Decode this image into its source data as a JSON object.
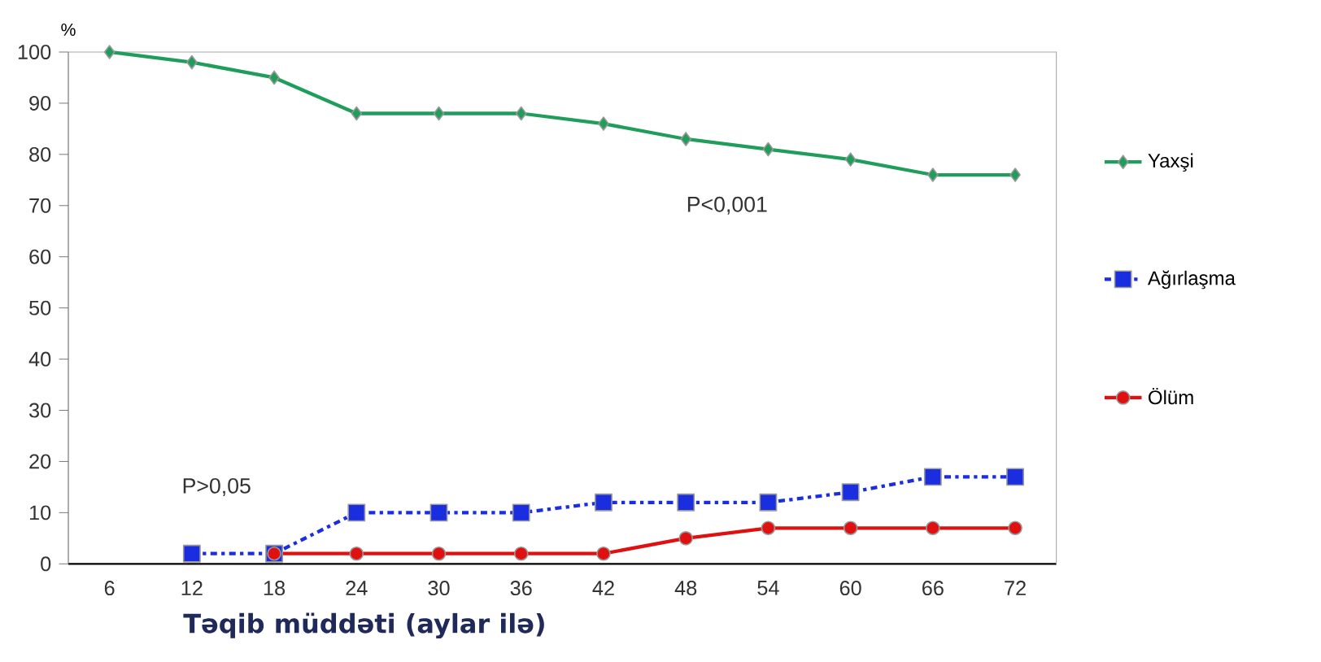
{
  "chart_data": {
    "type": "line",
    "ylabel": "%",
    "xlabel": "Təqib müddəti (aylar ilə)",
    "categories": [
      "6",
      "12",
      "18",
      "24",
      "30",
      "36",
      "42",
      "48",
      "54",
      "60",
      "66",
      "72"
    ],
    "series": [
      {
        "name": "Yaxşi",
        "color": "#1e9e5a",
        "marker": "diamond",
        "line_style": "solid",
        "values": [
          100,
          98,
          95,
          88,
          88,
          88,
          86,
          83,
          81,
          79,
          76,
          76
        ]
      },
      {
        "name": "Ağırlaşma",
        "color": "#1a2ee0",
        "marker": "square",
        "line_style": "dashed",
        "values": [
          null,
          2,
          2,
          10,
          10,
          10,
          12,
          12,
          12,
          14,
          17,
          17
        ]
      },
      {
        "name": "Ölüm",
        "color": "#e01010",
        "marker": "circle",
        "line_style": "solid",
        "values": [
          null,
          null,
          2,
          2,
          2,
          2,
          2,
          5,
          7,
          7,
          7,
          7
        ]
      }
    ],
    "ylim": [
      0,
      100
    ],
    "yticks": [
      0,
      10,
      20,
      30,
      40,
      50,
      60,
      70,
      80,
      90,
      100
    ],
    "legend": "right",
    "grid": false,
    "annotations": [
      "P<0,001",
      "P>0,05"
    ]
  }
}
